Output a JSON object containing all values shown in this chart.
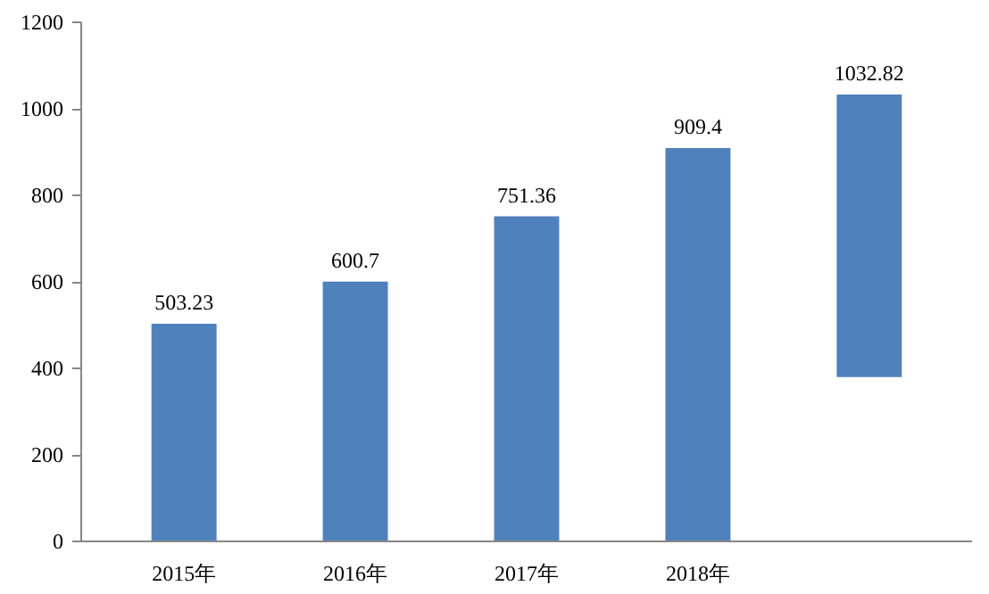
{
  "chart_data": {
    "type": "bar",
    "categories": [
      "2015年",
      "2016年",
      "2017年",
      "2018年",
      null
    ],
    "values": [
      503.23,
      600.7,
      751.36,
      909.4,
      652.82
    ],
    "base": [
      0,
      0,
      0,
      0,
      380
    ],
    "value_labels": [
      "503.23",
      "600.7",
      "751.36",
      "909.4",
      "1032.82"
    ],
    "color": "#4f81bd",
    "ylim": [
      0,
      1200
    ],
    "yticks": [
      0,
      200,
      400,
      600,
      800,
      1000,
      1200
    ],
    "grid": false
  }
}
